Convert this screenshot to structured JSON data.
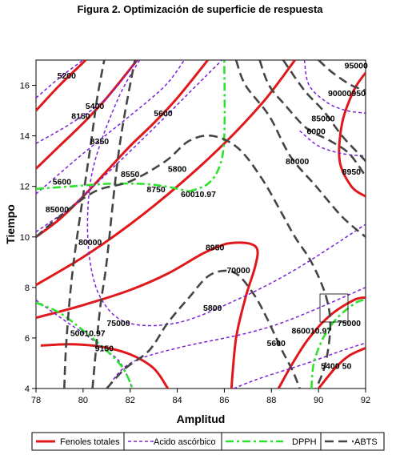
{
  "chart_data": {
    "type": "contour",
    "title": "Figura 2. Optimización de superficie de respuesta",
    "xlabel": "Amplitud",
    "ylabel": "Tiempo",
    "xlim": [
      78,
      92
    ],
    "ylim": [
      4,
      17
    ],
    "xticks": [
      "78",
      "80",
      "82",
      "84",
      "86",
      "88",
      "90",
      "92"
    ],
    "yticks": [
      "4",
      "6",
      "8",
      "10",
      "12",
      "14",
      "16"
    ],
    "series": [
      {
        "name": "Fenoles totales",
        "color": "#e0181b",
        "style": "solid",
        "lines": [
          [
            [
              78.2,
              5.7
            ],
            [
              79.5,
              5.75
            ],
            [
              80.8,
              5.65
            ],
            [
              82.0,
              5.35
            ],
            [
              83.0,
              4.8
            ],
            [
              83.6,
              4.0
            ]
          ],
          [
            [
              78.0,
              6.8
            ],
            [
              80.0,
              7.3
            ],
            [
              82.0,
              7.9
            ],
            [
              83.6,
              8.55
            ],
            [
              85.0,
              9.3
            ],
            [
              85.7,
              9.6
            ]
          ],
          [
            [
              85.7,
              9.6
            ],
            [
              86.2,
              9.75
            ],
            [
              87.0,
              9.75
            ],
            [
              87.4,
              9.5
            ],
            [
              87.3,
              8.8
            ],
            [
              86.9,
              7.6
            ],
            [
              86.5,
              6.0
            ],
            [
              86.3,
              4.0
            ]
          ],
          [
            [
              78.0,
              8.1
            ],
            [
              80.0,
              9.2
            ],
            [
              82.0,
              10.5
            ],
            [
              84.0,
              12.0
            ],
            [
              86.0,
              13.7
            ],
            [
              87.7,
              15.4
            ],
            [
              89.0,
              17.0
            ]
          ],
          [
            [
              78.0,
              10.0
            ],
            [
              79.0,
              10.7
            ],
            [
              80.0,
              11.6
            ],
            [
              81.0,
              12.6
            ],
            [
              82.0,
              13.6
            ],
            [
              83.0,
              14.5
            ],
            [
              84.0,
              15.5
            ],
            [
              85.3,
              17.0
            ]
          ],
          [
            [
              78.0,
              12.7
            ],
            [
              79.0,
              13.6
            ],
            [
              80.0,
              14.5
            ],
            [
              81.0,
              15.5
            ],
            [
              82.3,
              17.0
            ]
          ],
          [
            [
              78.0,
              15.0
            ],
            [
              79.0,
              16.0
            ],
            [
              80.0,
              16.9
            ],
            [
              80.1,
              17.0
            ]
          ],
          [
            [
              88.3,
              4.0
            ],
            [
              88.9,
              5.0
            ],
            [
              89.6,
              6.0
            ],
            [
              90.5,
              6.9
            ],
            [
              91.5,
              7.5
            ],
            [
              92.0,
              7.6
            ]
          ],
          [
            [
              90.0,
              4.0
            ],
            [
              90.7,
              4.8
            ],
            [
              91.3,
              5.3
            ],
            [
              92.0,
              5.6
            ]
          ],
          [
            [
              92.0,
              16.5
            ],
            [
              91.5,
              15.8
            ],
            [
              91.0,
              14.5
            ],
            [
              90.9,
              13.0
            ],
            [
              91.4,
              12.0
            ],
            [
              92.0,
              11.6
            ]
          ]
        ]
      },
      {
        "name": "Acido ascórbico",
        "color": "#7a22d6",
        "style": "dashed",
        "lines": [
          [
            [
              78.0,
              15.5
            ],
            [
              79.0,
              16.3
            ],
            [
              80.0,
              17.0
            ]
          ],
          [
            [
              78.0,
              13.7
            ],
            [
              79.5,
              14.5
            ],
            [
              81.0,
              15.5
            ],
            [
              82.3,
              17.0
            ]
          ],
          [
            [
              78.0,
              11.7
            ],
            [
              80.0,
              13.3
            ],
            [
              82.0,
              14.8
            ],
            [
              83.5,
              16.0
            ],
            [
              84.3,
              17.0
            ]
          ],
          [
            [
              78.0,
              10.2
            ],
            [
              79.5,
              11.2
            ],
            [
              81.0,
              12.5
            ],
            [
              83.0,
              14.3
            ],
            [
              84.5,
              15.7
            ],
            [
              85.9,
              17.0
            ]
          ],
          [
            [
              82.4,
              17.0
            ],
            [
              81.5,
              15.5
            ],
            [
              80.5,
              13.0
            ],
            [
              80.2,
              11.0
            ],
            [
              80.3,
              9.0
            ],
            [
              80.8,
              7.5
            ],
            [
              81.9,
              6.6
            ],
            [
              84.0,
              6.6
            ],
            [
              86.5,
              7.5
            ],
            [
              89.0,
              8.7
            ],
            [
              92.0,
              10.5
            ]
          ],
          [
            [
              78.0,
              7.5
            ],
            [
              79.2,
              6.7
            ],
            [
              80.0,
              6.2
            ],
            [
              81.0,
              5.5
            ],
            [
              81.6,
              5.0
            ],
            [
              82.1,
              4.0
            ]
          ],
          [
            [
              81.0,
              4.0
            ],
            [
              82.0,
              5.0
            ],
            [
              84.0,
              5.6
            ],
            [
              87.0,
              6.2
            ],
            [
              89.0,
              6.8
            ],
            [
              92.0,
              8.0
            ]
          ],
          [
            [
              86.4,
              4.0
            ],
            [
              87.5,
              4.4
            ],
            [
              89.5,
              5.0
            ],
            [
              91.0,
              5.5
            ],
            [
              92.0,
              5.8
            ]
          ],
          [
            [
              89.4,
              17.0
            ],
            [
              89.6,
              16.0
            ],
            [
              90.4,
              15.3
            ],
            [
              91.2,
              15.0
            ],
            [
              92.0,
              14.9
            ]
          ],
          [
            [
              89.2,
              14.2
            ],
            [
              90.0,
              13.6
            ],
            [
              91.0,
              13.3
            ],
            [
              92.0,
              13.2
            ]
          ]
        ]
      },
      {
        "name": "DPPH",
        "color": "#2de22d",
        "style": "dashdot",
        "lines": [
          [
            [
              78.0,
              11.9
            ],
            [
              79.5,
              12.0
            ],
            [
              81.0,
              12.1
            ],
            [
              82.5,
              12.1
            ],
            [
              83.5,
              12.0
            ],
            [
              84.5,
              11.8
            ]
          ],
          [
            [
              84.5,
              11.8
            ],
            [
              85.3,
              12.1
            ],
            [
              85.8,
              12.8
            ],
            [
              86.0,
              14.0
            ],
            [
              86.0,
              17.0
            ]
          ],
          [
            [
              78.0,
              7.4
            ],
            [
              79.0,
              7.0
            ],
            [
              80.0,
              6.3
            ],
            [
              81.0,
              5.5
            ],
            [
              81.7,
              4.8
            ],
            [
              82.1,
              4.0
            ]
          ],
          [
            [
              89.7,
              4.0
            ],
            [
              89.8,
              5.0
            ],
            [
              90.2,
              6.0
            ],
            [
              90.8,
              6.8
            ],
            [
              91.6,
              7.4
            ],
            [
              92.0,
              7.5
            ]
          ]
        ]
      },
      {
        "name": "ABTS",
        "color": "#454545",
        "style": "longdash",
        "lines": [
          [
            [
              79.2,
              4.0
            ],
            [
              79.3,
              6.0
            ],
            [
              79.6,
              9.0
            ],
            [
              80.3,
              13.5
            ],
            [
              80.6,
              15.5
            ],
            [
              80.9,
              17.0
            ]
          ],
          [
            [
              80.4,
              4.0
            ],
            [
              80.7,
              7.0
            ],
            [
              81.0,
              9.0
            ],
            [
              81.4,
              12.5
            ],
            [
              81.7,
              14.5
            ],
            [
              82.2,
              17.0
            ]
          ],
          [
            [
              78.0,
              10.0
            ],
            [
              79.0,
              10.8
            ],
            [
              80.5,
              11.8
            ],
            [
              82.0,
              12.2
            ],
            [
              83.5,
              13.0
            ],
            [
              84.5,
              13.8
            ],
            [
              85.5,
              14.0
            ],
            [
              86.6,
              13.5
            ],
            [
              87.6,
              12.3
            ],
            [
              88.4,
              11.0
            ],
            [
              89.0,
              10.0
            ],
            [
              89.7,
              9.0
            ],
            [
              90.3,
              7.7
            ],
            [
              90.5,
              6.5
            ],
            [
              90.3,
              5.0
            ],
            [
              89.9,
              4.0
            ]
          ],
          [
            [
              81.0,
              4.0
            ],
            [
              81.8,
              4.8
            ],
            [
              82.8,
              5.5
            ],
            [
              83.6,
              6.6
            ],
            [
              84.5,
              7.6
            ],
            [
              85.4,
              8.5
            ],
            [
              86.4,
              8.6
            ],
            [
              87.2,
              7.8
            ],
            [
              87.8,
              6.8
            ],
            [
              88.4,
              5.6
            ],
            [
              88.9,
              4.7
            ],
            [
              89.2,
              4.0
            ]
          ],
          [
            [
              87.5,
              17.0
            ],
            [
              87.9,
              16.0
            ],
            [
              88.6,
              15.2
            ],
            [
              89.5,
              14.3
            ],
            [
              90.5,
              13.8
            ],
            [
              91.3,
              13.3
            ],
            [
              92.0,
              12.4
            ]
          ],
          [
            [
              88.5,
              17.0
            ],
            [
              89.4,
              15.8
            ],
            [
              90.2,
              15.0
            ],
            [
              91.0,
              14.0
            ],
            [
              91.7,
              13.3
            ],
            [
              92.0,
              13.0
            ]
          ],
          [
            [
              90.0,
              17.0
            ],
            [
              90.6,
              16.5
            ],
            [
              91.4,
              16.0
            ],
            [
              92.0,
              15.8
            ]
          ],
          [
            [
              86.5,
              17.0
            ],
            [
              86.9,
              16.0
            ],
            [
              87.9,
              14.8
            ],
            [
              88.8,
              13.2
            ],
            [
              89.9,
              12.0
            ],
            [
              91.0,
              10.8
            ],
            [
              92.0,
              10.0
            ]
          ]
        ]
      }
    ],
    "contour_labels": [
      {
        "text": "5200",
        "x": 79.3,
        "y": 16.4
      },
      {
        "text": "5400",
        "x": 80.5,
        "y": 15.2
      },
      {
        "text": "8150",
        "x": 79.9,
        "y": 14.8
      },
      {
        "text": "5600",
        "x": 83.4,
        "y": 14.9
      },
      {
        "text": "8350",
        "x": 80.7,
        "y": 13.8
      },
      {
        "text": "8550",
        "x": 82.0,
        "y": 12.5
      },
      {
        "text": "5800",
        "x": 84.0,
        "y": 12.7
      },
      {
        "text": "5600",
        "x": 79.1,
        "y": 12.2
      },
      {
        "text": "8750",
        "x": 83.1,
        "y": 11.9
      },
      {
        "text": "60010.97",
        "x": 84.9,
        "y": 11.7
      },
      {
        "text": "85000",
        "x": 78.9,
        "y": 11.1
      },
      {
        "text": "80000",
        "x": 80.3,
        "y": 9.8
      },
      {
        "text": "8950",
        "x": 85.6,
        "y": 9.6
      },
      {
        "text": "70000",
        "x": 86.6,
        "y": 8.7
      },
      {
        "text": "5800",
        "x": 85.5,
        "y": 7.2
      },
      {
        "text": "75000",
        "x": 81.5,
        "y": 6.6
      },
      {
        "text": "50010.97",
        "x": 80.2,
        "y": 6.2
      },
      {
        "text": "9150",
        "x": 80.9,
        "y": 5.6
      },
      {
        "text": "5600",
        "x": 88.2,
        "y": 5.8
      },
      {
        "text": "860010.97",
        "x": 89.7,
        "y": 6.3
      },
      {
        "text": "75000",
        "x": 91.3,
        "y": 6.6
      },
      {
        "text": "5400",
        "x": 90.5,
        "y": 4.9
      },
      {
        "text": "50",
        "x": 91.2,
        "y": 4.9
      },
      {
        "text": "95000",
        "x": 91.6,
        "y": 16.8
      },
      {
        "text": "90000",
        "x": 90.9,
        "y": 15.7
      },
      {
        "text": "950",
        "x": 91.7,
        "y": 15.7
      },
      {
        "text": "85000",
        "x": 90.2,
        "y": 14.7
      },
      {
        "text": "6000",
        "x": 89.9,
        "y": 14.2
      },
      {
        "text": "80000",
        "x": 89.1,
        "y": 13.0
      },
      {
        "text": "8950",
        "x": 91.4,
        "y": 12.6
      }
    ],
    "legend_position": "bottom",
    "grid": false
  }
}
